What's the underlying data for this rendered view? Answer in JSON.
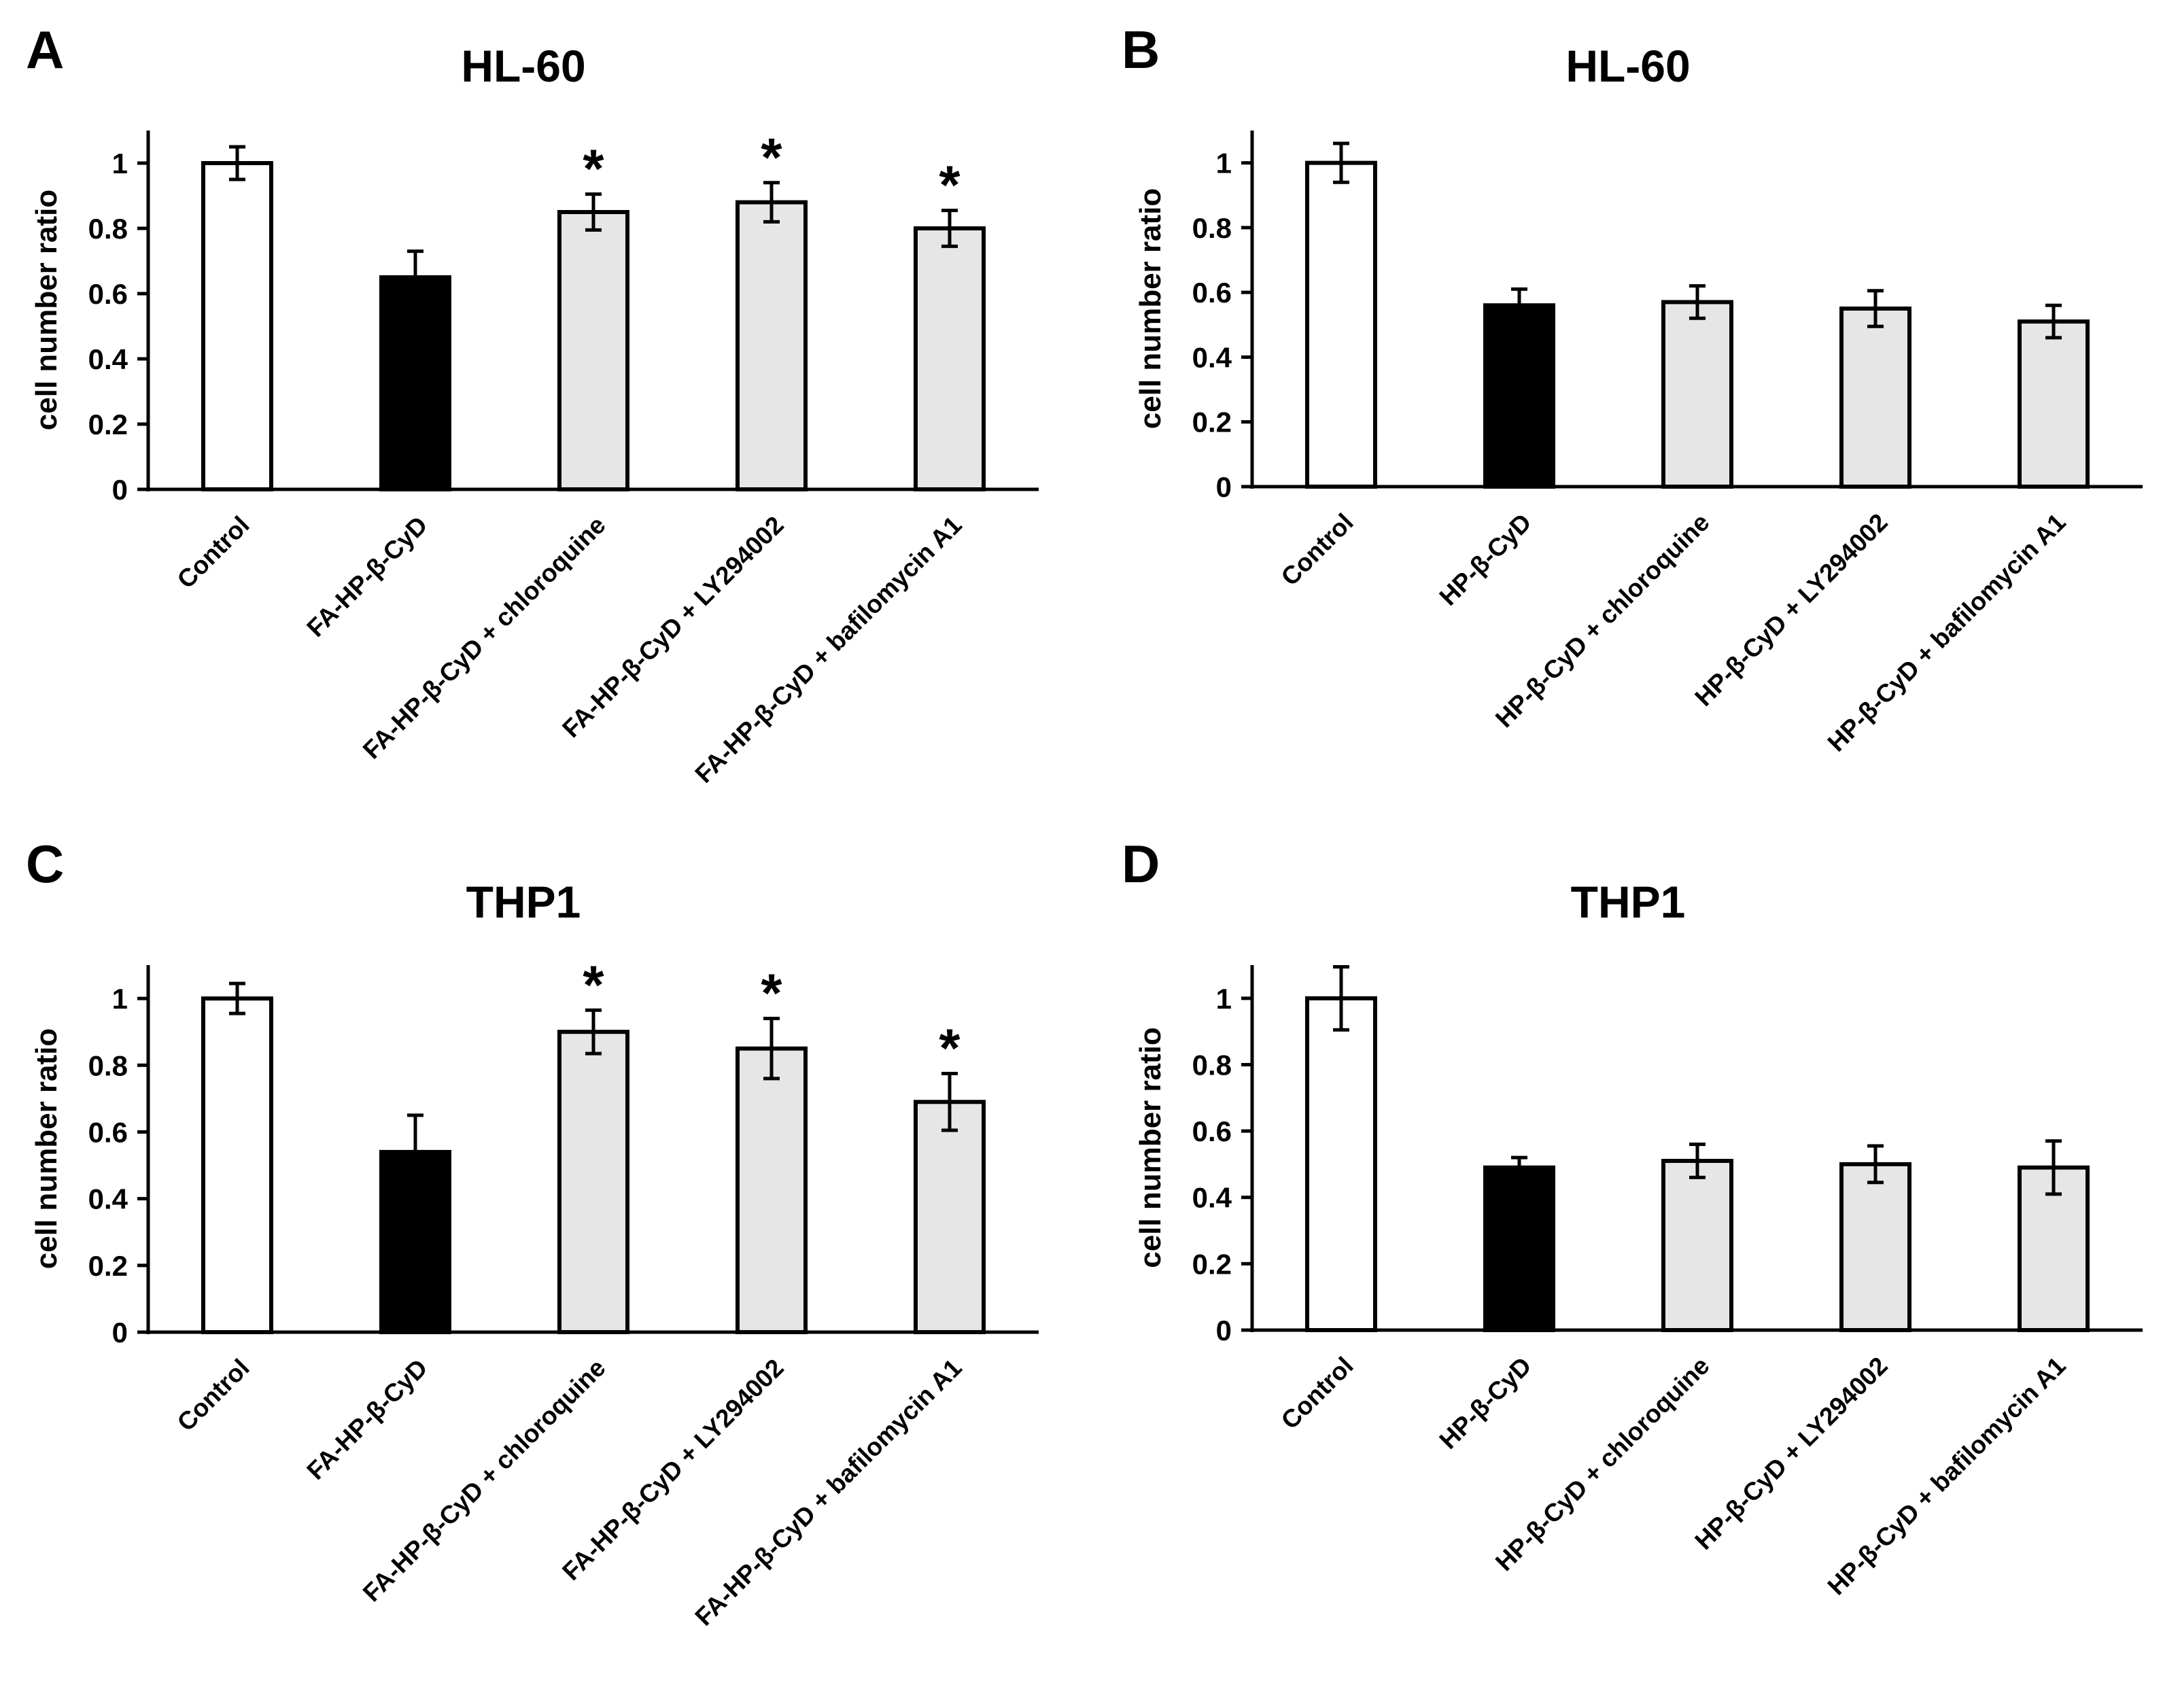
{
  "chart_data": [
    {
      "type": "bar",
      "panel": "A",
      "title": "HL-60",
      "ylabel": "cell number ratio",
      "xlabel": "",
      "ylim": [
        0,
        1.1
      ],
      "yticks": [
        0,
        0.2,
        0.4,
        0.6,
        0.8,
        1
      ],
      "ytick_labels": [
        "0",
        "0.2",
        "0.4",
        "0.6",
        "0.8",
        "1"
      ],
      "categories": [
        "Control",
        "FA-HP-β-CyD",
        "FA-HP-β-CyD + chloroquine",
        "FA-HP-β-CyD + LY294002",
        "FA-HP-β-CyD + bafilomycin A1"
      ],
      "values": [
        1.0,
        0.65,
        0.85,
        0.88,
        0.8
      ],
      "errors": [
        0.05,
        0.08,
        0.055,
        0.06,
        0.055
      ],
      "colors": [
        "#ffffff",
        "#000000",
        "#e6e6e6",
        "#e6e6e6",
        "#e6e6e6"
      ],
      "significance": [
        "",
        "",
        "*",
        "*",
        "*"
      ]
    },
    {
      "type": "bar",
      "panel": "B",
      "title": "HL-60",
      "ylabel": "cell number ratio",
      "xlabel": "",
      "ylim": [
        0,
        1.1
      ],
      "yticks": [
        0,
        0.2,
        0.4,
        0.6,
        0.8,
        1
      ],
      "ytick_labels": [
        "0",
        "0.2",
        "0.4",
        "0.6",
        "0.8",
        "1"
      ],
      "categories": [
        "Control",
        "HP-β-CyD",
        "HP-β-CyD + chloroquine",
        "HP-β-CyD + LY294002",
        "HP-β-CyD + bafilomycin A1"
      ],
      "values": [
        1.0,
        0.56,
        0.57,
        0.55,
        0.51
      ],
      "errors": [
        0.06,
        0.05,
        0.05,
        0.055,
        0.05
      ],
      "colors": [
        "#ffffff",
        "#000000",
        "#e6e6e6",
        "#e6e6e6",
        "#e6e6e6"
      ],
      "significance": [
        "",
        "",
        "",
        "",
        ""
      ]
    },
    {
      "type": "bar",
      "panel": "C",
      "title": "THP1",
      "ylabel": "cell number ratio",
      "xlabel": "",
      "ylim": [
        0,
        1.1
      ],
      "yticks": [
        0,
        0.2,
        0.4,
        0.6,
        0.8,
        1
      ],
      "ytick_labels": [
        "0",
        "0.2",
        "0.4",
        "0.6",
        "0.8",
        "1"
      ],
      "categories": [
        "Control",
        "FA-HP-β-CyD",
        "FA-HP-β-CyD + chloroquine",
        "FA-HP-β-CyD + LY294002",
        "FA-HP-β-CyD + bafilomycin A1"
      ],
      "values": [
        1.0,
        0.54,
        0.9,
        0.85,
        0.69
      ],
      "errors": [
        0.045,
        0.11,
        0.065,
        0.09,
        0.085
      ],
      "colors": [
        "#ffffff",
        "#000000",
        "#e6e6e6",
        "#e6e6e6",
        "#e6e6e6"
      ],
      "significance": [
        "",
        "",
        "*",
        "*",
        "*"
      ]
    },
    {
      "type": "bar",
      "panel": "D",
      "title": "THP1",
      "ylabel": "cell number ratio",
      "xlabel": "",
      "ylim": [
        0,
        1.1
      ],
      "yticks": [
        0,
        0.2,
        0.4,
        0.6,
        0.8,
        1
      ],
      "ytick_labels": [
        "0",
        "0.2",
        "0.4",
        "0.6",
        "0.8",
        "1"
      ],
      "categories": [
        "Control",
        "HP-β-CyD",
        "HP-β-CyD + chloroquine",
        "HP-β-CyD + LY294002",
        "HP-β-CyD + bafilomycin A1"
      ],
      "values": [
        1.0,
        0.49,
        0.51,
        0.5,
        0.49
      ],
      "errors": [
        0.095,
        0.03,
        0.05,
        0.055,
        0.08
      ],
      "colors": [
        "#ffffff",
        "#000000",
        "#e6e6e6",
        "#e6e6e6",
        "#e6e6e6"
      ],
      "significance": [
        "",
        "",
        "",
        "",
        ""
      ]
    }
  ]
}
